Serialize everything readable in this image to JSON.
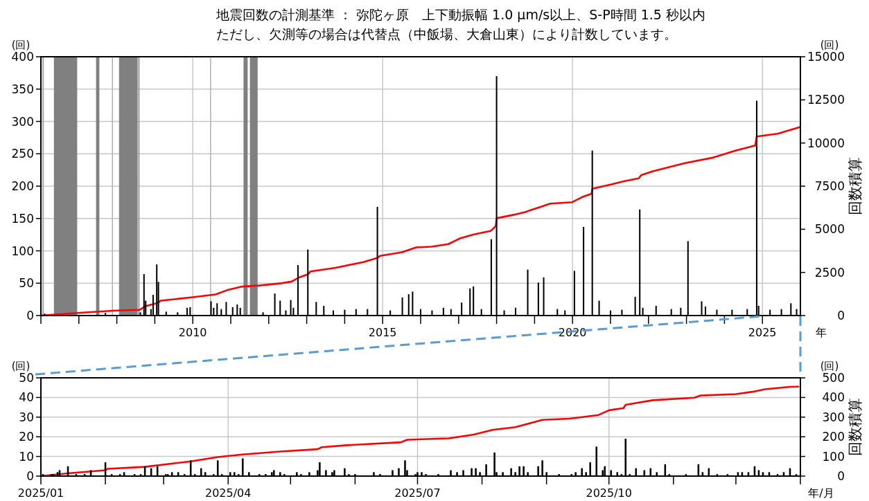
{
  "chart_data": [
    {
      "type": "bar",
      "title": "地震回数の計測基準 ： 弥陀ヶ原　上下動振幅 1.0 μm/s以上、S-P時間 1.5 秒以内",
      "subtitle": "ただし、欠測等の場合は代替点（中飯場、大倉山東）により計数しています。",
      "xlabel": "年",
      "ylabel": "(回)",
      "y2label": "回数積算",
      "annotations": [
        "(回)"
      ],
      "xlim": [
        2006,
        2026
      ],
      "xticks": [
        {
          "value": 2006,
          "label": null
        },
        {
          "value": 2007,
          "label": null
        },
        {
          "value": 2008,
          "label": null
        },
        {
          "value": 2009,
          "label": null
        },
        2010,
        {
          "value": 2011,
          "label": null
        },
        {
          "value": 2012,
          "label": null
        },
        {
          "value": 2013,
          "label": null
        },
        {
          "value": 2014,
          "label": null
        },
        2015,
        {
          "value": 2016,
          "label": null
        },
        {
          "value": 2017,
          "label": null
        },
        {
          "value": 2018,
          "label": null
        },
        {
          "value": 2019,
          "label": null
        },
        2020,
        {
          "value": 2021,
          "label": null
        },
        {
          "value": 2022,
          "label": null
        },
        {
          "value": 2023,
          "label": null
        },
        {
          "value": 2024,
          "label": null
        },
        2025
      ],
      "ylim": [
        0,
        400
      ],
      "yticks": [
        0,
        50,
        100,
        150,
        200,
        250,
        300,
        350,
        400
      ],
      "y2lim": [
        0,
        15000
      ],
      "y2ticks": [
        0,
        2500,
        5000,
        7500,
        10000,
        12500,
        15000
      ],
      "grid": true,
      "bands": [
        {
          "axis": "x",
          "from": 2006.036,
          "to": 2006.08,
          "label": null,
          "color": "#b0b0b0"
        },
        {
          "axis": "x",
          "from": 2006.343,
          "to": 2006.956,
          "label": null,
          "color": "#808080"
        },
        {
          "axis": "x",
          "from": 2007.453,
          "to": 2007.54,
          "label": null,
          "color": "#808080"
        },
        {
          "axis": "x",
          "from": 2007.87,
          "to": 2007.88,
          "label": null,
          "color": "#b0b0b0"
        },
        {
          "axis": "x",
          "from": 2008.058,
          "to": 2008.547,
          "label": null,
          "color": "#808080"
        },
        {
          "axis": "x",
          "from": 2008.56,
          "to": 2008.6,
          "label": null,
          "color": "#a0a0a0"
        },
        {
          "axis": "x",
          "from": 2010.455,
          "to": 2010.465,
          "label": null,
          "color": "#b0b0b0"
        },
        {
          "axis": "x",
          "from": 2011.336,
          "to": 2011.445,
          "label": null,
          "color": "#808080"
        },
        {
          "axis": "x",
          "from": 2011.504,
          "to": 2011.708,
          "label": null,
          "color": "#808080"
        }
      ],
      "series": [
        {
          "color": "#000000",
          "x": [
            2006.1,
            2007.7,
            2008.62,
            2008.715,
            2008.76,
            2008.9,
            2008.956,
            2009.051,
            2009.095,
            2009.3,
            2009.6,
            2009.85,
            2009.93,
            2010.48,
            2010.55,
            2010.64,
            2010.75,
            2010.88,
            2011.05,
            2011.17,
            2011.25,
            2011.85,
            2012.16,
            2012.3,
            2012.45,
            2012.58,
            2012.65,
            2012.77,
            2013.03,
            2013.25,
            2013.45,
            2013.7,
            2014.0,
            2014.3,
            2014.6,
            2014.861,
            2015.2,
            2015.518,
            2015.686,
            2015.788,
            2016.0,
            2016.3,
            2016.6,
            2016.8,
            2017.08,
            2017.3,
            2017.39,
            2017.6,
            2017.86,
            2018.0,
            2018.2,
            2018.5,
            2018.82,
            2019.1,
            2019.24,
            2019.6,
            2019.8,
            2020.05,
            2020.29,
            2020.52,
            2020.7,
            2021.0,
            2021.3,
            2021.65,
            2021.77,
            2021.85,
            2022.2,
            2022.6,
            2022.85,
            2023.04,
            2023.4,
            2023.5,
            2023.8,
            2024.2,
            2024.6,
            2024.85,
            2024.9,
            2025.2,
            2025.5,
            2025.75,
            2025.9
          ],
          "values": [
            3,
            4,
            5,
            64,
            23,
            10,
            32,
            79,
            52,
            6,
            5,
            12,
            13,
            22,
            12,
            19,
            10,
            21,
            13,
            17,
            12,
            5,
            34,
            23,
            8,
            24,
            12,
            78,
            102,
            21,
            15,
            8,
            9,
            10,
            10,
            168,
            8,
            28,
            33,
            37,
            10,
            8,
            12,
            10,
            20,
            42,
            45,
            10,
            118,
            370,
            8,
            12,
            71,
            51,
            59,
            10,
            8,
            69,
            137,
            255,
            23,
            8,
            9,
            29,
            164,
            12,
            15,
            10,
            12,
            115,
            22,
            14,
            9,
            9,
            10,
            332,
            15,
            9,
            10,
            19,
            10
          ]
        },
        {
          "type": "line",
          "axis": "y2",
          "color": "#ff0000",
          "x": [
            2006.0,
            2006.96,
            2007.9,
            2008.6,
            2008.75,
            2009.08,
            2009.15,
            2010.0,
            2010.6,
            2010.9,
            2011.3,
            2011.75,
            2012.33,
            2012.6,
            2012.82,
            2013.04,
            2013.1,
            2013.76,
            2014.49,
            2014.86,
            2014.93,
            2015.51,
            2015.88,
            2016.28,
            2016.73,
            2017.02,
            2017.4,
            2017.84,
            2017.98,
            2018.0,
            2018.45,
            2018.75,
            2019.2,
            2019.41,
            2019.99,
            2020.28,
            2020.5,
            2020.52,
            2021.0,
            2021.37,
            2021.74,
            2021.81,
            2022.1,
            2022.54,
            2022.98,
            2023.71,
            2024.3,
            2024.81,
            2024.85,
            2025.4,
            2025.98
          ],
          "values": [
            0,
            150,
            280,
            330,
            540,
            730,
            860,
            1060,
            1220,
            1470,
            1680,
            1740,
            1870,
            1970,
            2230,
            2400,
            2560,
            2770,
            3100,
            3340,
            3460,
            3670,
            3950,
            3990,
            4140,
            4460,
            4700,
            4900,
            5190,
            5640,
            5840,
            6000,
            6330,
            6490,
            6570,
            6890,
            7060,
            7350,
            7590,
            7790,
            7950,
            8140,
            8350,
            8600,
            8840,
            9160,
            9570,
            9860,
            10380,
            10540,
            10920
          ]
        }
      ]
    },
    {
      "type": "bar",
      "xlabel": "年/月",
      "ylabel": "(回)",
      "y2label": "回数積算",
      "annotations": [
        "(回)"
      ],
      "xlim": [
        "2025-01-01",
        "2026-01-01"
      ],
      "xticks": [
        {
          "value": "2025-01-01",
          "label": "2025/01"
        },
        {
          "value": "2025-02-01",
          "label": null
        },
        {
          "value": "2025-03-01",
          "label": null
        },
        {
          "value": "2025-04-01",
          "label": "2025/04"
        },
        {
          "value": "2025-05-01",
          "label": null
        },
        {
          "value": "2025-06-01",
          "label": null
        },
        {
          "value": "2025-07-01",
          "label": "2025/07"
        },
        {
          "value": "2025-08-01",
          "label": null
        },
        {
          "value": "2025-09-01",
          "label": null
        },
        {
          "value": "2025-10-01",
          "label": "2025/10"
        },
        {
          "value": "2025-11-01",
          "label": null
        },
        {
          "value": "2025-12-01",
          "label": null
        },
        {
          "value": "2026-01-01",
          "label": null
        }
      ],
      "ylim": [
        0,
        50
      ],
      "yticks": [
        0,
        10,
        20,
        30,
        40,
        50
      ],
      "y2lim": [
        0,
        500
      ],
      "y2ticks": [
        0,
        100,
        200,
        300,
        400,
        500
      ],
      "grid": true,
      "series": [
        {
          "color": "#000000",
          "x": [
            "2025-01-02",
            "2025-01-06",
            "2025-01-07",
            "2025-01-09",
            "2025-01-10",
            "2025-01-14",
            "2025-01-18",
            "2025-01-22",
            "2025-01-25",
            "2025-02-01",
            "2025-02-04",
            "2025-02-08",
            "2025-02-10",
            "2025-02-15",
            "2025-02-18",
            "2025-02-20",
            "2025-02-23",
            "2025-02-26",
            "2025-03-02",
            "2025-03-03",
            "2025-03-05",
            "2025-03-08",
            "2025-03-11",
            "2025-03-14",
            "2025-03-16",
            "2025-03-19",
            "2025-03-21",
            "2025-03-25",
            "2025-03-27",
            "2025-03-29",
            "2025-04-02",
            "2025-04-04",
            "2025-04-06",
            "2025-04-08",
            "2025-04-11",
            "2025-04-16",
            "2025-04-19",
            "2025-04-22",
            "2025-04-23",
            "2025-04-26",
            "2025-04-28",
            "2025-05-04",
            "2025-05-06",
            "2025-05-10",
            "2025-05-14",
            "2025-05-15",
            "2025-05-18",
            "2025-05-21",
            "2025-05-22",
            "2025-05-27",
            "2025-05-29",
            "2025-06-01",
            "2025-06-10",
            "2025-06-13",
            "2025-06-19",
            "2025-06-22",
            "2025-06-25",
            "2025-06-26",
            "2025-06-30",
            "2025-07-01",
            "2025-07-03",
            "2025-07-05",
            "2025-07-11",
            "2025-07-17",
            "2025-07-20",
            "2025-07-23",
            "2025-07-27",
            "2025-07-29",
            "2025-07-31",
            "2025-08-03",
            "2025-08-07",
            "2025-08-08",
            "2025-08-11",
            "2025-08-15",
            "2025-08-17",
            "2025-08-19",
            "2025-08-21",
            "2025-08-23",
            "2025-08-28",
            "2025-08-30",
            "2025-09-01",
            "2025-09-07",
            "2025-09-13",
            "2025-09-15",
            "2025-09-18",
            "2025-09-20",
            "2025-09-22",
            "2025-09-25",
            "2025-09-28",
            "2025-09-29",
            "2025-10-02",
            "2025-10-05",
            "2025-10-07",
            "2025-10-09",
            "2025-10-11",
            "2025-10-14",
            "2025-10-18",
            "2025-10-21",
            "2025-10-24",
            "2025-10-28",
            "2025-10-30",
            "2025-11-07",
            "2025-11-13",
            "2025-11-15",
            "2025-11-18",
            "2025-11-22",
            "2025-11-27",
            "2025-12-02",
            "2025-12-04",
            "2025-12-07",
            "2025-12-10",
            "2025-12-12",
            "2025-12-14",
            "2025-12-17",
            "2025-12-21",
            "2025-12-24",
            "2025-12-27",
            "2025-12-30"
          ],
          "values": [
            1,
            1,
            1,
            2,
            3,
            5,
            1,
            1,
            3,
            7,
            1,
            1,
            2,
            1,
            1,
            5,
            4,
            5,
            1,
            1,
            2,
            2,
            1,
            8,
            1,
            4,
            2,
            1,
            8,
            1,
            2,
            2,
            1,
            9,
            2,
            1,
            1,
            2,
            3,
            2,
            1,
            2,
            1,
            2,
            3,
            7,
            3,
            2,
            3,
            4,
            1,
            1,
            2,
            1,
            3,
            4,
            8,
            3,
            1,
            2,
            2,
            1,
            1,
            3,
            2,
            3,
            4,
            4,
            2,
            6,
            12,
            2,
            2,
            4,
            2,
            5,
            5,
            2,
            5,
            8,
            2,
            1,
            1,
            2,
            4,
            2,
            7,
            15,
            3,
            5,
            3,
            2,
            1,
            19,
            1,
            4,
            3,
            4,
            2,
            6,
            1,
            1,
            6,
            2,
            4,
            1,
            1,
            2,
            2,
            2,
            5,
            3,
            2,
            2,
            1,
            2,
            4,
            1
          ]
        },
        {
          "type": "line",
          "axis": "y2",
          "color": "#ff0000",
          "x": [
            "2025-01-01",
            "2025-01-14",
            "2025-02-01",
            "2025-02-02",
            "2025-02-20",
            "2025-03-14",
            "2025-03-27",
            "2025-04-08",
            "2025-04-26",
            "2025-05-14",
            "2025-05-16",
            "2025-05-28",
            "2025-06-23",
            "2025-06-26",
            "2025-07-10",
            "2025-07-16",
            "2025-07-28",
            "2025-08-06",
            "2025-08-17",
            "2025-08-30",
            "2025-09-12",
            "2025-09-26",
            "2025-10-01",
            "2025-10-08",
            "2025-10-09",
            "2025-10-22",
            "2025-11-11",
            "2025-11-14",
            "2025-12-01",
            "2025-12-09",
            "2025-12-15",
            "2025-12-27",
            "2025-12-31"
          ],
          "values": [
            0,
            14,
            30,
            37,
            47,
            75,
            97,
            110,
            125,
            137,
            147,
            157,
            172,
            185,
            190,
            192,
            211,
            235,
            249,
            286,
            292,
            311,
            335,
            346,
            363,
            386,
            399,
            410,
            417,
            429,
            442,
            454,
            455
          ]
        }
      ]
    }
  ]
}
